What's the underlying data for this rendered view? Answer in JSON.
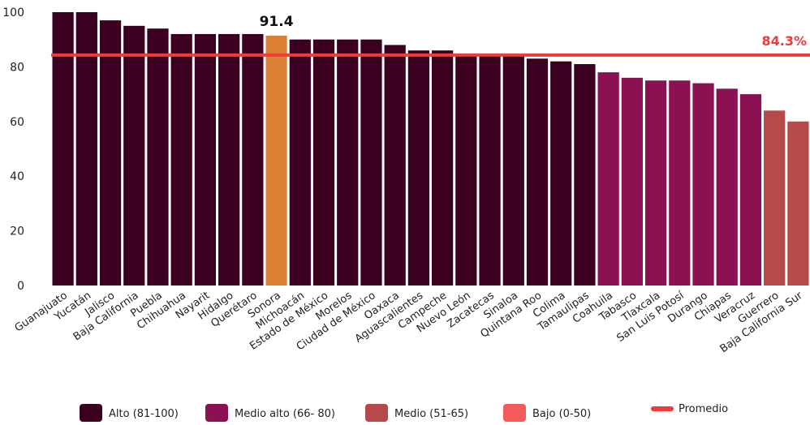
{
  "chart_data": {
    "type": "bar",
    "categories": [
      "Guanajuato",
      "Yucatán",
      "Jalisco",
      "Baja California",
      "Puebla",
      "Chihuahua",
      "Nayarit",
      "Hidalgo",
      "Querétaro",
      "Sonora",
      "Michoacán",
      "Estado de México",
      "Morelos",
      "Ciudad de México",
      "Oaxaca",
      "Aguascalientes",
      "Campeche",
      "Nuevo León",
      "Zacatecas",
      "Sinaloa",
      "Quintana Roo",
      "Colima",
      "Tamaulipas",
      "Coahuila",
      "Tabasco",
      "Tlaxcala",
      "San Luis Potosí",
      "Durango",
      "Chiapas",
      "Veracruz",
      "Guerrero",
      "Baja California Sur"
    ],
    "values": [
      100,
      100,
      97,
      95,
      94,
      92,
      92,
      92,
      92,
      91.4,
      90,
      90,
      90,
      90,
      88,
      86,
      86,
      84.5,
      84.5,
      84.5,
      83,
      82,
      81,
      78,
      76,
      75,
      75,
      74,
      72,
      70,
      64,
      60
    ],
    "classes": [
      "alto",
      "alto",
      "alto",
      "alto",
      "alto",
      "alto",
      "alto",
      "alto",
      "alto",
      "highlight",
      "alto",
      "alto",
      "alto",
      "alto",
      "alto",
      "alto",
      "alto",
      "alto",
      "alto",
      "alto",
      "alto",
      "alto",
      "alto",
      "medio_alto",
      "medio_alto",
      "medio_alto",
      "medio_alto",
      "medio_alto",
      "medio_alto",
      "medio_alto",
      "medio",
      "medio"
    ],
    "ylim": [
      0,
      100
    ],
    "yticks": [
      0,
      20,
      40,
      60,
      80,
      100
    ],
    "highlight_label": "91.4",
    "average": {
      "value": 84.3,
      "label": "84.3%"
    },
    "legend_position": "bottom",
    "colors": {
      "alto": "#3b0020",
      "medio_alto": "#8c1152",
      "medio": "#b64a4a",
      "bajo": "#f45b5b",
      "highlight": "#dd8135",
      "average_line": "#ee3b3b"
    },
    "legend": [
      {
        "key": "alto",
        "label": "Alto (81-100)",
        "kind": "box"
      },
      {
        "key": "medio_alto",
        "label": "Medio alto (66- 80)",
        "kind": "box"
      },
      {
        "key": "medio",
        "label": "Medio (51-65)",
        "kind": "box"
      },
      {
        "key": "bajo",
        "label": "Bajo (0-50)",
        "kind": "box"
      },
      {
        "key": "average_line",
        "label": "Promedio",
        "kind": "line"
      }
    ]
  }
}
